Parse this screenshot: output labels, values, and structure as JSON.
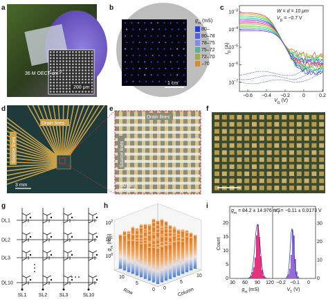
{
  "panel_labels": [
    "a",
    "b",
    "c",
    "d",
    "e",
    "f",
    "g",
    "h",
    "i"
  ],
  "a": {
    "density": {
      "main": "36 M OECT cm",
      "sup": "−2"
    },
    "scale_bar": "200 μm"
  },
  "b": {
    "legend_title": {
      "main": "g",
      "sub": "m",
      "rest": " (mS)"
    },
    "legend": [
      "80–",
      "80–78",
      "78–75",
      "75–72",
      "72–70",
      "–70"
    ],
    "scale_bar": "1 cm"
  },
  "c": {
    "annotation_1": "W = d = 10 μm",
    "annotation_2": {
      "main": "V",
      "sub": "D",
      "rest": " = −0.7 V"
    },
    "y_label": {
      "main": "I",
      "sub": "D",
      "rest": " (A)"
    },
    "x_label": {
      "main": "V",
      "sub": "G",
      "rest": " (V)"
    },
    "y_ticks": [
      {
        "main": "10",
        "sup": "−3"
      },
      {
        "main": "10",
        "sup": "−4"
      },
      {
        "main": "10",
        "sup": "−5"
      },
      {
        "main": "10",
        "sup": "−6"
      },
      {
        "main": "10",
        "sup": "−7"
      }
    ],
    "x_ticks": [
      "−0.6",
      "−0.4",
      "−0.2",
      "0",
      "0.2"
    ]
  },
  "d": {
    "drain": "Drain lines",
    "source": "Source lines",
    "scale_bar": "3 mm"
  },
  "e": {
    "drain": "Drain lines",
    "source": "Source lines",
    "scale_bar": "50 μm"
  },
  "g": {
    "drain_lines": [
      "DL1",
      "DL2",
      "DL3",
      "DL10"
    ],
    "source_lines": [
      "SL1",
      "SL2",
      "SL3",
      "SL10"
    ]
  },
  "h": {
    "z_label": {
      "main": "g",
      "sub": "m",
      "rest": " (mS)"
    },
    "z_ticks": [
      {
        "main": "10",
        "sup": "2"
      },
      {
        "main": "10",
        "sup": "1"
      },
      {
        "main": "10",
        "sup": "0"
      }
    ],
    "row_label": "Row",
    "column_label": "Column",
    "row_ticks": [
      "10",
      "5",
      "0"
    ],
    "column_ticks": [
      "0",
      "5",
      "10"
    ]
  },
  "i": {
    "gm_stat": {
      "main": "g",
      "sub": "m",
      "rest": " = 84.2 ± 14.976 mS"
    },
    "vt_stat": {
      "main": "V",
      "sub": "T",
      "rest": " = −0.11 ± 0.0173 V"
    },
    "y_label": "Count",
    "y_ticks": [
      "0",
      "5",
      "10",
      "15",
      "20"
    ],
    "y2_ticks": [
      "0",
      "10",
      "20",
      "30"
    ],
    "x_ticks_gm": [
      "30",
      "60",
      "90",
      "120"
    ],
    "x_ticks_vt": [
      "−0.2",
      "−0.1",
      "0"
    ],
    "x_label_gm": {
      "main": "g",
      "sub": "m",
      "rest": " (mS)"
    },
    "x_label_vt": {
      "main": "V",
      "sub": "T",
      "rest": " (V)"
    }
  }
}
